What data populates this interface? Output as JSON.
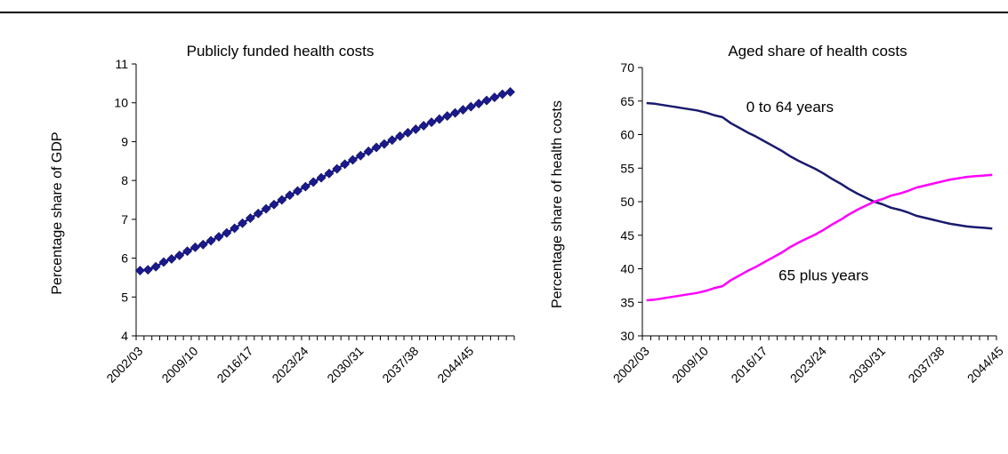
{
  "chart_data": [
    {
      "type": "line",
      "title": "Publicly funded health costs",
      "xlabel": "",
      "ylabel": "Percentage share of GDP",
      "ylim": [
        4,
        11
      ],
      "yticks": [
        4,
        5,
        6,
        7,
        8,
        9,
        10,
        11
      ],
      "xtick_labels": [
        "2002/03",
        "2009/10",
        "2016/17",
        "2023/24",
        "2030/31",
        "2037/38",
        "2044/45"
      ],
      "marker": "diamond",
      "series": [
        {
          "color": "#1a1a8c",
          "values": [
            5.68,
            5.7,
            5.78,
            5.9,
            5.98,
            6.07,
            6.18,
            6.28,
            6.35,
            6.45,
            6.55,
            6.65,
            6.77,
            6.9,
            7.03,
            7.15,
            7.27,
            7.38,
            7.5,
            7.62,
            7.73,
            7.84,
            7.96,
            8.07,
            8.18,
            8.3,
            8.42,
            8.53,
            8.64,
            8.75,
            8.85,
            8.94,
            9.04,
            9.14,
            9.23,
            9.32,
            9.41,
            9.5,
            9.58,
            9.66,
            9.74,
            9.82,
            9.9,
            9.98,
            10.06,
            10.14,
            10.22,
            10.28
          ]
        }
      ]
    },
    {
      "type": "line",
      "title": "Aged share of health costs",
      "xlabel": "",
      "ylabel": "Percentage share of health costs",
      "ylim": [
        30,
        70
      ],
      "yticks": [
        30,
        35,
        40,
        45,
        50,
        55,
        60,
        65,
        70
      ],
      "xtick_labels": [
        "2002/03",
        "2009/10",
        "2016/17",
        "2023/24",
        "2030/31",
        "2037/38",
        "2044/45"
      ],
      "series": [
        {
          "name": "0 to 64 years",
          "color": "#1a1a6e",
          "values": [
            64.7,
            64.6,
            64.4,
            64.2,
            64.0,
            63.8,
            63.6,
            63.3,
            62.9,
            62.6,
            61.7,
            61.0,
            60.3,
            59.7,
            59.0,
            58.3,
            57.6,
            56.8,
            56.1,
            55.5,
            54.9,
            54.2,
            53.4,
            52.7,
            51.9,
            51.2,
            50.6,
            50.0,
            49.6,
            49.1,
            48.8,
            48.4,
            47.9,
            47.6,
            47.3,
            47.0,
            46.7,
            46.5,
            46.3,
            46.2,
            46.1,
            46.0
          ]
        },
        {
          "name": "65 plus years",
          "color": "#ff00ff",
          "values": [
            35.3,
            35.4,
            35.6,
            35.8,
            36.0,
            36.2,
            36.4,
            36.7,
            37.1,
            37.4,
            38.3,
            39.0,
            39.7,
            40.3,
            41.0,
            41.7,
            42.4,
            43.2,
            43.9,
            44.5,
            45.1,
            45.8,
            46.6,
            47.3,
            48.1,
            48.8,
            49.4,
            50.0,
            50.4,
            50.9,
            51.2,
            51.6,
            52.1,
            52.4,
            52.7,
            53.0,
            53.3,
            53.5,
            53.7,
            53.8,
            53.9,
            54.0
          ]
        }
      ],
      "annotations": [
        {
          "text": "0 to 64 years",
          "x_index": 17,
          "y": 63.4
        },
        {
          "text": "65 plus years",
          "x_index": 21,
          "y": 38.3
        }
      ]
    }
  ]
}
